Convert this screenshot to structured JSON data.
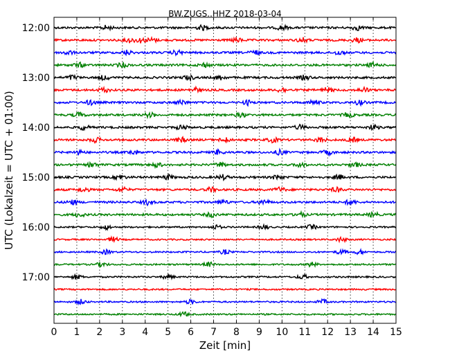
{
  "chart_data": {
    "type": "line",
    "title": "BW.ZUGS..HHZ 2018-03-04",
    "xlabel": "Zeit  [min]",
    "ylabel": "UTC (Lokalzeit = UTC + 01:00)",
    "xlim": [
      0,
      15
    ],
    "x_ticks": [
      "0",
      "1",
      "2",
      "3",
      "4",
      "5",
      "6",
      "7",
      "8",
      "9",
      "10",
      "11",
      "12",
      "13",
      "14",
      "15"
    ],
    "y_ticks": [
      "12:00",
      "13:00",
      "14:00",
      "15:00",
      "16:00",
      "17:00"
    ],
    "grid": "vertical dotted",
    "trace_colors": [
      "#000000",
      "#ff0000",
      "#0000ff",
      "#008000"
    ],
    "series": [
      {
        "start": "12:00",
        "events": [
          2.3,
          6.5,
          10.0,
          13.3
        ]
      },
      {
        "start": "12:15",
        "events": [
          3.3,
          3.8,
          4.3,
          8.0,
          10.9,
          13.3
        ]
      },
      {
        "start": "12:30",
        "events": [
          0.6,
          3.2,
          5.4,
          8.8,
          12.5
        ]
      },
      {
        "start": "12:45",
        "events": [
          1.1,
          3.0,
          6.6,
          14.0
        ]
      },
      {
        "start": "13:00",
        "events": [
          0.8,
          2.2,
          5.9,
          7.3,
          11.0
        ]
      },
      {
        "start": "13:15",
        "events": [
          2.2,
          6.2,
          10.0,
          12.0,
          13.6
        ]
      },
      {
        "start": "13:30",
        "events": [
          1.6,
          5.6,
          8.5,
          11.4,
          13.4
        ]
      },
      {
        "start": "13:45",
        "events": [
          1.1,
          4.2,
          8.2,
          12.9
        ]
      },
      {
        "start": "14:00",
        "events": [
          1.3,
          5.6,
          10.8,
          14.0
        ]
      },
      {
        "start": "14:15",
        "events": [
          1.8,
          5.6,
          7.5,
          9.6,
          11.7,
          13.1
        ]
      },
      {
        "start": "14:30",
        "events": [
          1.1,
          3.5,
          7.2,
          9.9,
          12.0
        ]
      },
      {
        "start": "14:45",
        "events": [
          1.7,
          4.5,
          7.3,
          10.8,
          13.2
        ]
      },
      {
        "start": "15:00",
        "events": [
          2.9,
          5.0,
          7.4,
          9.8,
          12.5
        ]
      },
      {
        "start": "15:15",
        "events": [
          1.3,
          3.0,
          6.9,
          9.9,
          12.4
        ]
      },
      {
        "start": "15:30",
        "events": [
          0.8,
          4.1,
          7.4,
          9.2,
          13.0
        ]
      },
      {
        "start": "15:45",
        "events": [
          1.1,
          6.9,
          10.8,
          14.0
        ]
      },
      {
        "start": "16:00",
        "events": [
          2.3,
          7.1,
          9.2,
          11.3
        ]
      },
      {
        "start": "16:15",
        "events": [
          2.6,
          12.6
        ]
      },
      {
        "start": "16:30",
        "events": [
          2.3,
          7.5,
          12.6,
          13.4
        ]
      },
      {
        "start": "16:45",
        "events": [
          2.1,
          6.8,
          11.3
        ]
      },
      {
        "start": "17:00",
        "events": [
          1.0,
          5.0,
          10.9
        ]
      },
      {
        "start": "17:15",
        "events": []
      },
      {
        "start": "17:30",
        "events": [
          1.2,
          6.0,
          11.8
        ]
      },
      {
        "start": "17:45",
        "events": [
          5.7
        ]
      }
    ]
  }
}
